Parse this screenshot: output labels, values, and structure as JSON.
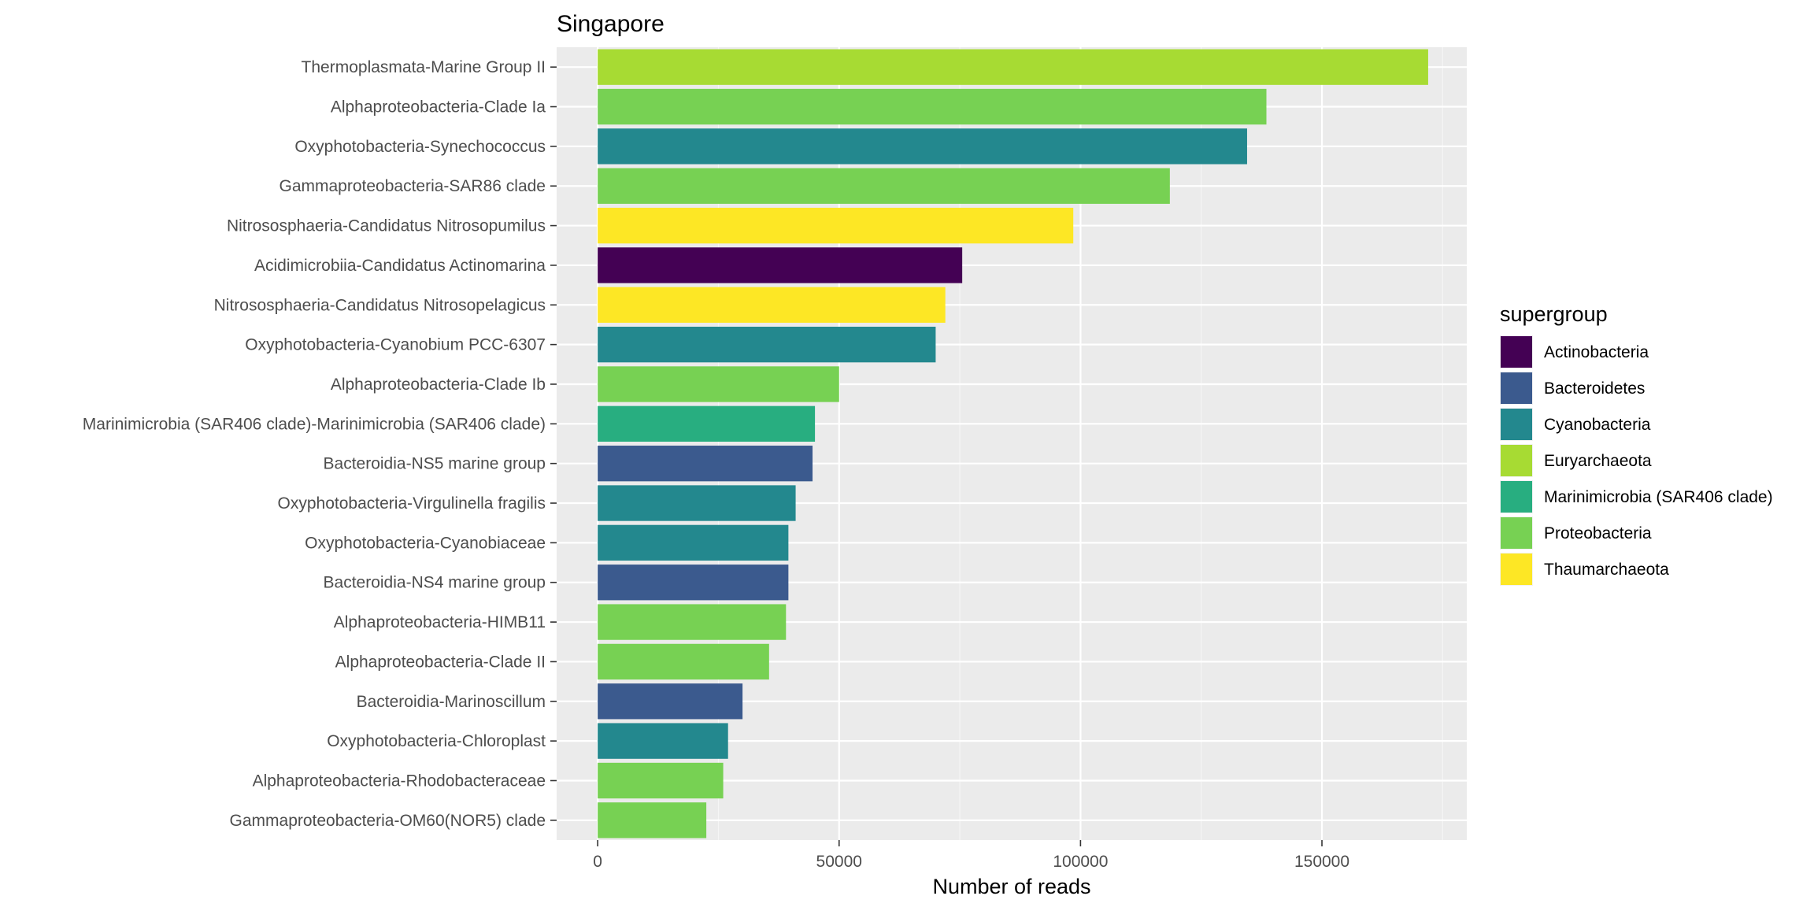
{
  "chart_data": {
    "type": "bar",
    "orientation": "horizontal",
    "title": "Singapore",
    "xlabel": "Number of reads",
    "ylabel": "",
    "xlim": [
      -8500,
      180000
    ],
    "xticks": [
      0,
      50000,
      100000,
      150000
    ],
    "grid": true,
    "legend": {
      "title": "supergroup",
      "position": "right",
      "entries": [
        {
          "name": "Actinobacteria",
          "color": "#440154"
        },
        {
          "name": "Bacteroidetes",
          "color": "#3B5A8E"
        },
        {
          "name": "Cyanobacteria",
          "color": "#23888E"
        },
        {
          "name": "Euryarchaeota",
          "color": "#A7DB33"
        },
        {
          "name": "Marinimicrobia (SAR406 clade)",
          "color": "#28AE80"
        },
        {
          "name": "Proteobacteria",
          "color": "#77D153"
        },
        {
          "name": "Thaumarchaeota",
          "color": "#FDE725"
        }
      ]
    },
    "bars": [
      {
        "category": "Thermoplasmata-Marine Group II",
        "value": 172000,
        "group": "Euryarchaeota"
      },
      {
        "category": "Alphaproteobacteria-Clade Ia",
        "value": 138500,
        "group": "Proteobacteria"
      },
      {
        "category": "Oxyphotobacteria-Synechococcus",
        "value": 134500,
        "group": "Cyanobacteria"
      },
      {
        "category": "Gammaproteobacteria-SAR86 clade",
        "value": 118500,
        "group": "Proteobacteria"
      },
      {
        "category": "Nitrososphaeria-Candidatus Nitrosopumilus",
        "value": 98500,
        "group": "Thaumarchaeota"
      },
      {
        "category": "Acidimicrobiia-Candidatus Actinomarina",
        "value": 75500,
        "group": "Actinobacteria"
      },
      {
        "category": "Nitrososphaeria-Candidatus Nitrosopelagicus",
        "value": 72000,
        "group": "Thaumarchaeota"
      },
      {
        "category": "Oxyphotobacteria-Cyanobium PCC-6307",
        "value": 70000,
        "group": "Cyanobacteria"
      },
      {
        "category": "Alphaproteobacteria-Clade Ib",
        "value": 50000,
        "group": "Proteobacteria"
      },
      {
        "category": "Marinimicrobia (SAR406 clade)-Marinimicrobia (SAR406 clade)",
        "value": 45000,
        "group": "Marinimicrobia (SAR406 clade)"
      },
      {
        "category": "Bacteroidia-NS5 marine group",
        "value": 44500,
        "group": "Bacteroidetes"
      },
      {
        "category": "Oxyphotobacteria-Virgulinella fragilis",
        "value": 41000,
        "group": "Cyanobacteria"
      },
      {
        "category": "Oxyphotobacteria-Cyanobiaceae",
        "value": 39500,
        "group": "Cyanobacteria"
      },
      {
        "category": "Bacteroidia-NS4 marine group",
        "value": 39500,
        "group": "Bacteroidetes"
      },
      {
        "category": "Alphaproteobacteria-HIMB11",
        "value": 39000,
        "group": "Proteobacteria"
      },
      {
        "category": "Alphaproteobacteria-Clade II",
        "value": 35500,
        "group": "Proteobacteria"
      },
      {
        "category": "Bacteroidia-Marinoscillum",
        "value": 30000,
        "group": "Bacteroidetes"
      },
      {
        "category": "Oxyphotobacteria-Chloroplast",
        "value": 27000,
        "group": "Cyanobacteria"
      },
      {
        "category": "Alphaproteobacteria-Rhodobacteraceae",
        "value": 26000,
        "group": "Proteobacteria"
      },
      {
        "category": "Gammaproteobacteria-OM60(NOR5) clade",
        "value": 22500,
        "group": "Proteobacteria"
      }
    ]
  }
}
